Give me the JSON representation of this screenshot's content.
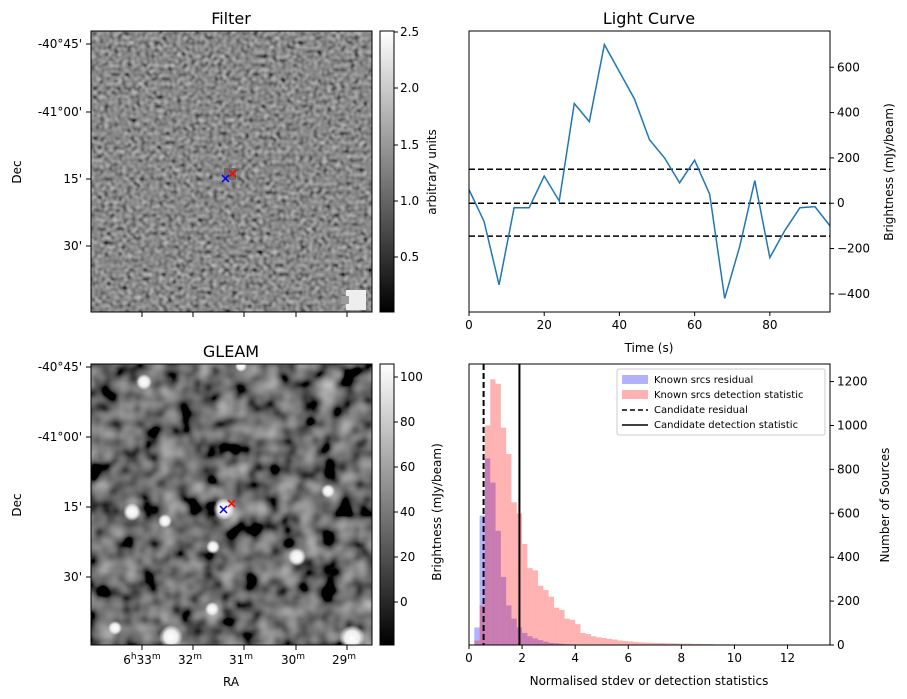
{
  "figure": {
    "filter_panel": {
      "title": "Filter",
      "ylabel": "Dec",
      "dec_ticks": [
        "-40°45'",
        "-41°00'",
        "15'",
        "30'"
      ],
      "colorbar": {
        "label": "arbitrary units",
        "ticks": [
          "0.5",
          "1.0",
          "1.5",
          "2.0",
          "2.5"
        ],
        "colormap": "gray"
      },
      "markers": [
        {
          "symbol": "x",
          "color": "#0000ff"
        },
        {
          "symbol": "x",
          "color": "#ff0000"
        }
      ]
    },
    "gleam_panel": {
      "title": "GLEAM",
      "xlabel": "RA",
      "ylabel": "Dec",
      "dec_ticks": [
        "-40°45'",
        "-41°00'",
        "15'",
        "30'"
      ],
      "ra_ticks": [
        {
          "h": "6",
          "hs": "h",
          "m": "33",
          "ms": "m"
        },
        {
          "m": "32",
          "ms": "m"
        },
        {
          "m": "31",
          "ms": "m"
        },
        {
          "m": "30",
          "ms": "m"
        },
        {
          "m": "29",
          "ms": "m"
        }
      ],
      "colorbar": {
        "label": "Brightness (mJy/beam)",
        "ticks": [
          "0",
          "20",
          "40",
          "60",
          "80",
          "100"
        ],
        "colormap": "gray"
      },
      "markers": [
        {
          "symbol": "x",
          "color": "#0000ff"
        },
        {
          "symbol": "x",
          "color": "#ff0000"
        }
      ]
    }
  },
  "chart_data": [
    {
      "type": "line",
      "title": "Light Curve",
      "xlabel": "Time (s)",
      "ylabel": "Brightness (mJy/beam)",
      "xlim": [
        0,
        96
      ],
      "ylim": [
        -480,
        760
      ],
      "xticks": [
        0,
        20,
        40,
        60,
        80
      ],
      "yticks": [
        -400,
        -200,
        0,
        200,
        400,
        600
      ],
      "line_color": "#1f77b4",
      "x": [
        0,
        4,
        8,
        12,
        16,
        20,
        24,
        28,
        32,
        36,
        40,
        44,
        48,
        52,
        56,
        60,
        64,
        68,
        72,
        76,
        80,
        84,
        88,
        92,
        96
      ],
      "y": [
        60,
        -80,
        -360,
        -20,
        -20,
        120,
        10,
        440,
        360,
        700,
        580,
        460,
        280,
        200,
        90,
        190,
        40,
        -420,
        -190,
        100,
        -240,
        -120,
        -20,
        -15,
        -100
      ],
      "hlines": [
        {
          "y": 150,
          "style": "dashed",
          "color": "#000000"
        },
        {
          "y": 0,
          "style": "dashed",
          "color": "#000000"
        },
        {
          "y": -145,
          "style": "dashed",
          "color": "#000000"
        }
      ],
      "grid": false,
      "y_axis_side": "right"
    },
    {
      "type": "histogram",
      "xlabel": "Normalised stdev or detection statistics",
      "ylabel": "Number of Sources",
      "xlim": [
        0,
        13.6
      ],
      "ylim": [
        0,
        1280
      ],
      "xticks": [
        0,
        2,
        4,
        6,
        8,
        10,
        12
      ],
      "yticks": [
        0,
        200,
        400,
        600,
        800,
        1000,
        1200
      ],
      "bin_width": 0.2,
      "legend_position": "top-right",
      "y_axis_side": "right",
      "series": [
        {
          "name": "Known srcs residual",
          "color": "#0000ff",
          "alpha": 0.3,
          "bin_start": 0.0,
          "values": [
            0,
            80,
            590,
            850,
            740,
            520,
            310,
            180,
            120,
            80,
            55,
            40,
            30,
            22,
            15,
            10,
            8,
            6,
            4,
            3,
            2
          ]
        },
        {
          "name": "Known srcs detection statistic",
          "color": "#ff0000",
          "alpha": 0.3,
          "bin_start": 0.0,
          "values": [
            0,
            20,
            180,
            1000,
            1210,
            1190,
            990,
            870,
            650,
            600,
            460,
            350,
            340,
            270,
            250,
            220,
            170,
            160,
            120,
            115,
            95,
            55,
            50,
            40,
            35,
            32,
            28,
            25,
            20,
            18,
            16,
            14,
            12,
            11,
            10,
            9,
            9,
            8,
            8,
            7,
            6,
            6,
            5,
            5,
            4,
            4,
            3,
            3,
            3,
            2,
            2,
            2,
            2,
            1,
            1,
            1,
            1,
            1,
            1,
            1,
            1,
            1,
            1,
            1,
            1
          ]
        }
      ],
      "vlines": [
        {
          "name": "Candidate residual",
          "x": 0.55,
          "style": "dashed",
          "color": "#000000"
        },
        {
          "name": "Candidate detection statistic",
          "x": 1.9,
          "style": "solid",
          "color": "#000000"
        }
      ]
    }
  ]
}
